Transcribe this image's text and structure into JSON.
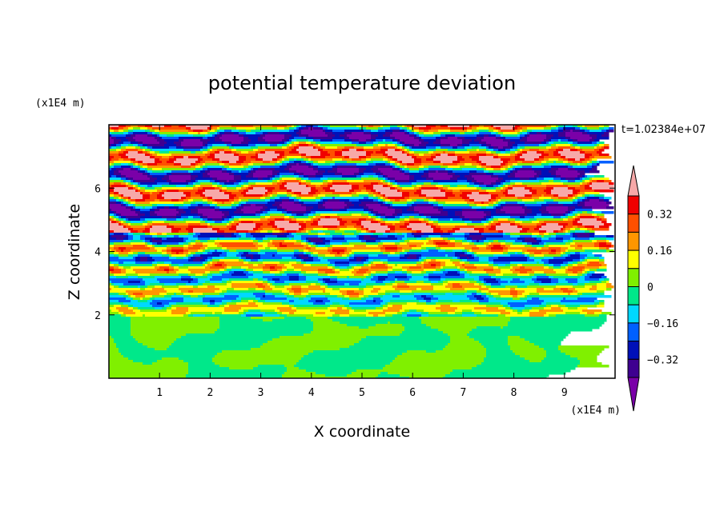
{
  "chart_data": {
    "type": "heatmap",
    "title": "potential temperature deviation",
    "xlabel": "X coordinate",
    "ylabel": "Z coordinate",
    "x_unit": "(x1E4 m)",
    "y_unit": "(x1E4 m)",
    "xlim": [
      0,
      10
    ],
    "ylim": [
      0,
      8
    ],
    "x_ticks": [
      1,
      2,
      3,
      4,
      5,
      6,
      7,
      8,
      9
    ],
    "y_ticks": [
      2,
      4,
      6
    ],
    "time_label": "t=1.02384e+07",
    "colorbar": {
      "levels": [
        -0.4,
        -0.32,
        -0.24,
        -0.16,
        -0.08,
        0,
        0.08,
        0.16,
        0.24,
        0.32,
        0.4
      ],
      "tick_labels": [
        "0.32",
        "0.16",
        "0",
        "−0.16",
        "−0.32"
      ],
      "tick_values": [
        0.32,
        0.16,
        0,
        -0.16,
        -0.32
      ],
      "colors": [
        "#7a00a8",
        "#3e0090",
        "#0010b8",
        "#0060ff",
        "#00d8ff",
        "#00e88a",
        "#80f000",
        "#ffff00",
        "#ff9600",
        "#ff5000",
        "#f00000",
        "#f7a8a8"
      ]
    },
    "bands": [
      {
        "zmin": 0.0,
        "zmax": 1.95,
        "dominant": [
          0,
          0.08
        ],
        "description_level": "near zero"
      },
      {
        "zmin": 1.95,
        "zmax": 4.6,
        "dominant": [
          -0.16,
          0.16
        ],
        "description_level": "mixed"
      },
      {
        "zmin": 4.6,
        "zmax": 8.0,
        "dominant": [
          -0.4,
          0.4
        ],
        "description_level": "alternating extremes"
      }
    ]
  }
}
